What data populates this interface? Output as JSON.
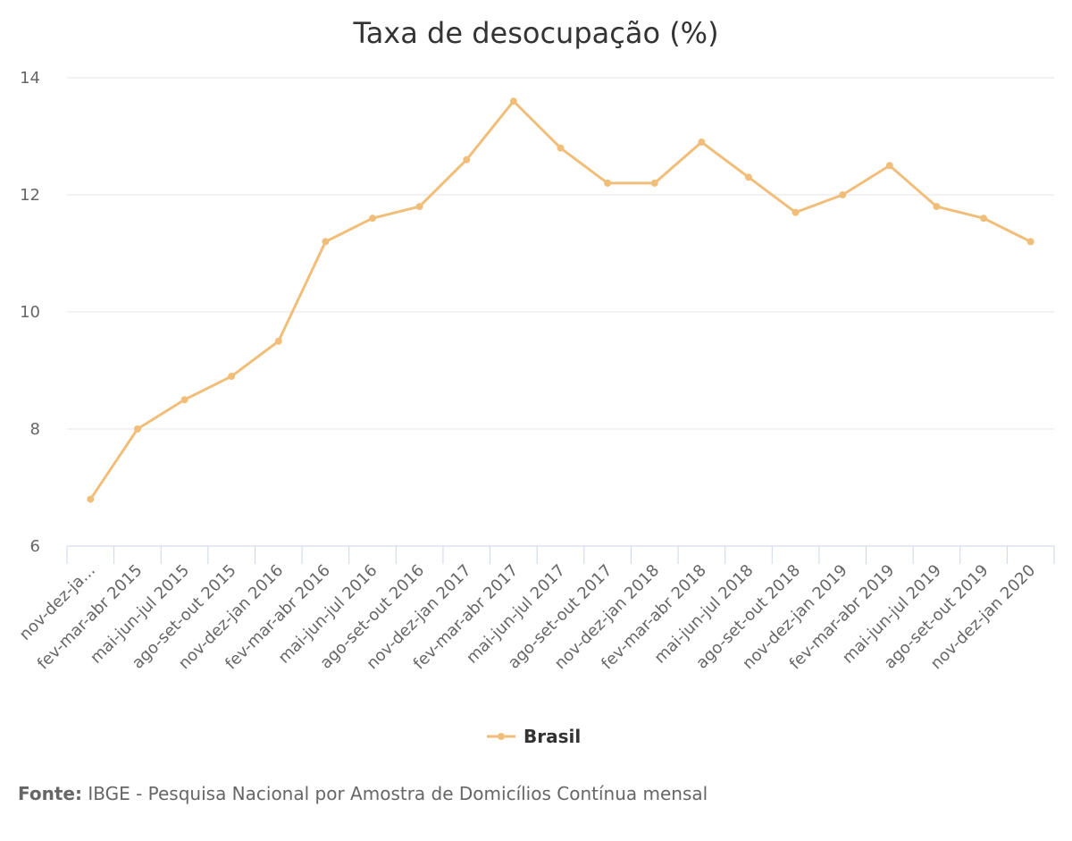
{
  "chart_data": {
    "type": "line",
    "title": "Taxa de desocupação (%)",
    "xlabel": "",
    "ylabel": "",
    "categories": [
      "nov-dez-ja...",
      "fev-mar-abr 2015",
      "mai-jun-jul 2015",
      "ago-set-out 2015",
      "nov-dez-jan 2016",
      "fev-mar-abr 2016",
      "mai-jun-jul 2016",
      "ago-set-out 2016",
      "nov-dez-jan 2017",
      "fev-mar-abr 2017",
      "mai-jun-jul 2017",
      "ago-set-out 2017",
      "nov-dez-jan 2018",
      "fev-mar-abr 2018",
      "mai-jun-jul 2018",
      "ago-set-out 2018",
      "nov-dez-jan 2019",
      "fev-mar-abr 2019",
      "mai-jun-jul 2019",
      "ago-set-out 2019",
      "nov-dez-jan 2020"
    ],
    "series": [
      {
        "name": "Brasil",
        "color": "#f1be7a",
        "values": [
          6.8,
          8.0,
          8.5,
          8.9,
          9.5,
          11.2,
          11.6,
          11.8,
          12.6,
          13.6,
          12.8,
          12.2,
          12.2,
          12.9,
          12.3,
          11.7,
          12.0,
          12.5,
          11.8,
          11.6,
          11.2
        ]
      }
    ],
    "ylim": [
      6,
      14
    ],
    "yticks": [
      6,
      8,
      10,
      12,
      14
    ],
    "grid": true,
    "legend_position": "bottom-center"
  },
  "source": {
    "label": "Fonte:",
    "text": "IBGE - Pesquisa Nacional por Amostra de Domicílios Contínua mensal"
  }
}
